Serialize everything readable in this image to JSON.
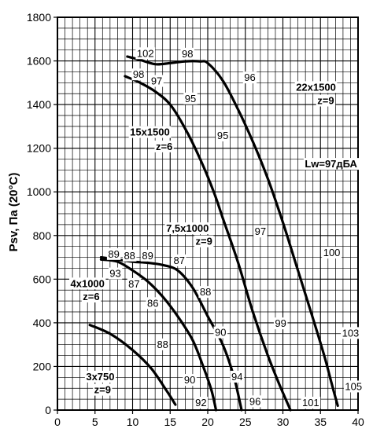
{
  "chart_data": {
    "type": "line",
    "xlim": [
      0,
      40
    ],
    "ylim": [
      0,
      1800
    ],
    "x_ticks": [
      "0",
      "5",
      "10",
      "15",
      "20",
      "25",
      "30",
      "35",
      "40"
    ],
    "y_ticks": [
      "0",
      "200",
      "400",
      "600",
      "800",
      "1000",
      "1200",
      "1400",
      "1600",
      "1800"
    ],
    "ylabel": "Psv, Па (20°C)",
    "xlabel": "",
    "grid": true,
    "series": [
      {
        "name": "3x750 z=9",
        "points": [
          [
            4.3,
            390
          ],
          [
            7,
            350
          ],
          [
            10,
            275
          ],
          [
            12.5,
            190
          ],
          [
            14.5,
            90
          ],
          [
            15.7,
            25
          ]
        ]
      },
      {
        "name": "4x1000 z=6",
        "points": [
          [
            5.8,
            690
          ],
          [
            8,
            680
          ],
          [
            10,
            640
          ],
          [
            12,
            590
          ],
          [
            14,
            520
          ],
          [
            16,
            430
          ],
          [
            18,
            320
          ],
          [
            19.5,
            190
          ],
          [
            20.5,
            90
          ],
          [
            21.1,
            0
          ]
        ]
      },
      {
        "name": "7,5x1000 z=9",
        "points": [
          [
            5.8,
            700
          ],
          [
            8,
            690
          ],
          [
            10,
            680
          ],
          [
            12,
            675
          ],
          [
            14,
            665
          ],
          [
            16,
            640
          ],
          [
            18,
            560
          ],
          [
            20,
            430
          ],
          [
            22,
            300
          ],
          [
            23.5,
            150
          ],
          [
            24.5,
            0
          ]
        ]
      },
      {
        "name": "15x1500 z=6",
        "points": [
          [
            9,
            1530
          ],
          [
            11,
            1500
          ],
          [
            13,
            1460
          ],
          [
            15,
            1400
          ],
          [
            17,
            1290
          ],
          [
            19,
            1150
          ],
          [
            20.8,
            1000
          ],
          [
            22,
            880
          ],
          [
            24,
            680
          ],
          [
            26,
            450
          ],
          [
            28,
            250
          ],
          [
            29.5,
            120
          ],
          [
            31,
            0
          ]
        ]
      },
      {
        "name": "22x1500 z=9",
        "points": [
          [
            9.3,
            1620
          ],
          [
            11,
            1605
          ],
          [
            13,
            1585
          ],
          [
            15,
            1590
          ],
          [
            17,
            1598
          ],
          [
            19,
            1598
          ],
          [
            20,
            1590
          ],
          [
            22,
            1510
          ],
          [
            24,
            1380
          ],
          [
            26,
            1230
          ],
          [
            28,
            1060
          ],
          [
            30,
            860
          ],
          [
            32,
            640
          ],
          [
            34,
            420
          ],
          [
            35.5,
            250
          ],
          [
            36.5,
            120
          ],
          [
            37.3,
            20
          ]
        ]
      }
    ],
    "annotations": [
      {
        "text": "102",
        "x": 11.7,
        "y": 1637,
        "bold": false
      },
      {
        "text": "98",
        "x": 17.3,
        "y": 1635,
        "bold": false
      },
      {
        "text": "96",
        "x": 25.6,
        "y": 1526,
        "bold": false
      },
      {
        "text": "98",
        "x": 10.8,
        "y": 1540,
        "bold": false
      },
      {
        "text": "97",
        "x": 13.2,
        "y": 1510,
        "bold": false
      },
      {
        "text": "95",
        "x": 17.7,
        "y": 1430,
        "bold": false
      },
      {
        "text": "22x1500",
        "x": 34.4,
        "y": 1482,
        "bold": true
      },
      {
        "text": "z=9",
        "x": 35.7,
        "y": 1420,
        "bold": true
      },
      {
        "text": "15x1500",
        "x": 12.3,
        "y": 1276,
        "bold": true
      },
      {
        "text": "z=6",
        "x": 14.2,
        "y": 1210,
        "bold": true
      },
      {
        "text": "95",
        "x": 22.0,
        "y": 1260,
        "bold": false
      },
      {
        "text": "Lw=97дБА",
        "x": 36.4,
        "y": 1130,
        "bold": true
      },
      {
        "text": "7,5x1000",
        "x": 17.3,
        "y": 835,
        "bold": true
      },
      {
        "text": "z=9",
        "x": 19.5,
        "y": 775,
        "bold": true
      },
      {
        "text": "97",
        "x": 27.0,
        "y": 820,
        "bold": false
      },
      {
        "text": "100",
        "x": 36.5,
        "y": 723,
        "bold": false
      },
      {
        "text": "89",
        "x": 7.5,
        "y": 717,
        "bold": false
      },
      {
        "text": "88",
        "x": 9.6,
        "y": 710,
        "bold": false
      },
      {
        "text": "89",
        "x": 12.0,
        "y": 710,
        "bold": false
      },
      {
        "text": "87",
        "x": 16.2,
        "y": 688,
        "bold": false
      },
      {
        "text": "93",
        "x": 7.7,
        "y": 628,
        "bold": false
      },
      {
        "text": "4x1000",
        "x": 4.0,
        "y": 582,
        "bold": true
      },
      {
        "text": "z=6",
        "x": 4.5,
        "y": 522,
        "bold": true
      },
      {
        "text": "87",
        "x": 10.2,
        "y": 580,
        "bold": false
      },
      {
        "text": "86",
        "x": 12.7,
        "y": 492,
        "bold": false
      },
      {
        "text": "88",
        "x": 19.7,
        "y": 543,
        "bold": false
      },
      {
        "text": "99",
        "x": 29.7,
        "y": 399,
        "bold": false
      },
      {
        "text": "103",
        "x": 39.0,
        "y": 355,
        "bold": false
      },
      {
        "text": "90",
        "x": 21.7,
        "y": 358,
        "bold": false
      },
      {
        "text": "88",
        "x": 14.0,
        "y": 303,
        "bold": false
      },
      {
        "text": "94",
        "x": 23.9,
        "y": 155,
        "bold": false
      },
      {
        "text": "3x750",
        "x": 5.7,
        "y": 155,
        "bold": true
      },
      {
        "text": "z=9",
        "x": 6.0,
        "y": 95,
        "bold": true
      },
      {
        "text": "90",
        "x": 17.6,
        "y": 140,
        "bold": false
      },
      {
        "text": "105",
        "x": 39.4,
        "y": 110,
        "bold": false
      },
      {
        "text": "92",
        "x": 19.1,
        "y": 36,
        "bold": false
      },
      {
        "text": "96",
        "x": 26.3,
        "y": 42,
        "bold": false
      },
      {
        "text": "101",
        "x": 33.7,
        "y": 36,
        "bold": false
      }
    ]
  }
}
